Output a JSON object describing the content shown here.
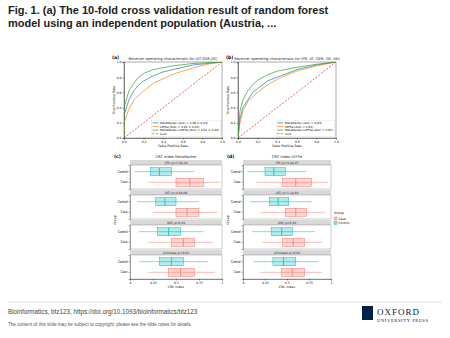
{
  "slide": {
    "title_lines": [
      "Fig. 1. (a) The 10-fold cross validation result of random forest",
      "model using an independent population (Austria, ..."
    ],
    "footer": [
      "Bioinformatics, btz123, https://doi.org/10.1093/bioinformatics/btz123",
      "The content of this slide may be subject to copyright: please see the slide notes for details."
    ],
    "publisher": [
      "OXFORD",
      "UNIVERSITY PRESS"
    ]
  },
  "chart_data": [
    {
      "type": "line",
      "label": "(a)",
      "title": "Receiver operating characteristic for (AT,GER,DE)",
      "xlabel": "False Positive Rate",
      "ylabel": "True Positive Rate",
      "xlim": [
        0,
        1
      ],
      "ylim": [
        0,
        1
      ],
      "xticks": [
        {
          "value": 0,
          "label": "0.0"
        },
        {
          "value": 0.2,
          "label": "0.2"
        },
        {
          "value": 0.4,
          "label": "0.4"
        },
        {
          "value": 0.6,
          "label": "0.6"
        },
        {
          "value": 0.8,
          "label": "0.8"
        },
        {
          "value": 1,
          "label": "1.0"
        }
      ],
      "yticks": [
        {
          "value": 0,
          "label": "0.0"
        },
        {
          "value": 0.2,
          "label": "0.2"
        },
        {
          "value": 0.4,
          "label": "0.4"
        },
        {
          "value": 0.6,
          "label": "0.6"
        },
        {
          "value": 0.8,
          "label": "0.8"
        },
        {
          "value": 1,
          "label": "1.0"
        }
      ],
      "grid": false,
      "legend": "lower right",
      "series": [
        {
          "name": "MetaMarker (AUC = 0.86 ± 0.03)",
          "color": "#1f77b4",
          "line_style": "solid",
          "x": [
            0,
            0,
            0.05,
            0.1,
            0.15,
            0.2,
            0.3,
            0.4,
            0.5,
            0.7,
            1
          ],
          "values": [
            0,
            0.3,
            0.5,
            0.62,
            0.7,
            0.75,
            0.82,
            0.87,
            0.9,
            0.96,
            1
          ]
        },
        {
          "name": "LEFSe (AUC = 0.81 ± 0.05)",
          "color": "#ff7f0e",
          "line_style": "solid",
          "x": [
            0,
            0,
            0.05,
            0.1,
            0.2,
            0.3,
            0.4,
            0.5,
            0.7,
            0.85,
            1
          ],
          "values": [
            0,
            0.2,
            0.38,
            0.5,
            0.62,
            0.72,
            0.78,
            0.84,
            0.92,
            0.97,
            1
          ]
        },
        {
          "name": "MetaMarker+LEFSe (AUC = 0.91 ± 0.04)",
          "color": "#2ca02c",
          "line_style": "solid",
          "x": [
            0,
            0,
            0.05,
            0.1,
            0.15,
            0.2,
            0.3,
            0.5,
            0.7,
            1
          ],
          "values": [
            0,
            0.4,
            0.62,
            0.72,
            0.8,
            0.85,
            0.9,
            0.95,
            0.98,
            1
          ]
        },
        {
          "name": "Luck",
          "color": "#d62728",
          "line_style": "dashed",
          "x": [
            0,
            1
          ],
          "values": [
            0,
            1
          ]
        }
      ]
    },
    {
      "type": "line",
      "label": "(b)",
      "title": "Receiver operating characteristic for (FR, AT, GER, DE, HK)",
      "xlabel": "False Positive Rate",
      "ylabel": "True Positive Rate",
      "xlim": [
        0,
        1
      ],
      "ylim": [
        0,
        1
      ],
      "xticks": [
        {
          "value": 0,
          "label": "0.0"
        },
        {
          "value": 0.2,
          "label": "0.2"
        },
        {
          "value": 0.4,
          "label": "0.4"
        },
        {
          "value": 0.6,
          "label": "0.6"
        },
        {
          "value": 0.8,
          "label": "0.8"
        },
        {
          "value": 1,
          "label": "1.0"
        }
      ],
      "yticks": [
        {
          "value": 0,
          "label": "0.0"
        },
        {
          "value": 0.2,
          "label": "0.2"
        },
        {
          "value": 0.4,
          "label": "0.4"
        },
        {
          "value": 0.6,
          "label": "0.6"
        },
        {
          "value": 0.8,
          "label": "0.8"
        },
        {
          "value": 1,
          "label": "1.0"
        }
      ],
      "grid": false,
      "legend": "lower right",
      "series": [
        {
          "name": "MetaMarker (AUC = 0.83)",
          "color": "#1f77b4",
          "line_style": "solid",
          "x": [
            0,
            0.02,
            0.05,
            0.1,
            0.15,
            0.2,
            0.3,
            0.4,
            0.5,
            0.6,
            0.8,
            1
          ],
          "values": [
            0,
            0.25,
            0.4,
            0.5,
            0.6,
            0.65,
            0.75,
            0.8,
            0.85,
            0.9,
            0.96,
            1
          ]
        },
        {
          "name": "LEFSe (AUC = 0.81)",
          "color": "#ff7f0e",
          "line_style": "solid",
          "x": [
            0,
            0.02,
            0.05,
            0.1,
            0.2,
            0.3,
            0.4,
            0.5,
            0.6,
            0.8,
            1
          ],
          "values": [
            0,
            0.2,
            0.35,
            0.48,
            0.6,
            0.7,
            0.77,
            0.83,
            0.88,
            0.95,
            1
          ]
        },
        {
          "name": "MetaMarker+LEFSe (AUC = 0.87)",
          "color": "#2ca02c",
          "line_style": "solid",
          "x": [
            0,
            0.02,
            0.05,
            0.1,
            0.15,
            0.2,
            0.3,
            0.4,
            0.6,
            0.8,
            1
          ],
          "values": [
            0,
            0.35,
            0.5,
            0.62,
            0.7,
            0.76,
            0.83,
            0.88,
            0.93,
            0.97,
            1
          ]
        },
        {
          "name": "Luck",
          "color": "#d62728",
          "line_style": "dashed",
          "x": [
            0,
            1
          ],
          "values": [
            0,
            1
          ]
        }
      ]
    },
    {
      "type": "box",
      "label": "(c)",
      "title": "CRC Index MetaMarker",
      "xlabel": "CRC Index",
      "ylabel": "Group",
      "xlim": [
        0,
        1
      ],
      "xticks": [
        0,
        0.25,
        0.5,
        0.75,
        1
      ],
      "grid": true,
      "categories": [
        "Control",
        "Case"
      ],
      "colors": [
        "#00bfc4",
        "#f8766d"
      ],
      "facets": [
        {
          "title": "(FR) p=1.5e-10",
          "boxes": [
            [
              0.05,
              0.22,
              0.32,
              0.45,
              0.7
            ],
            [
              0.2,
              0.5,
              0.65,
              0.8,
              0.98
            ]
          ]
        },
        {
          "title": "(AT) p=4.6e-06",
          "boxes": [
            [
              0.08,
              0.28,
              0.38,
              0.5,
              0.75
            ],
            [
              0.25,
              0.5,
              0.62,
              0.75,
              0.95
            ]
          ]
        },
        {
          "title": "(DE) p=0.01",
          "boxes": [
            [
              0.1,
              0.3,
              0.42,
              0.55,
              0.8
            ],
            [
              0.2,
              0.45,
              0.58,
              0.7,
              0.9
            ]
          ]
        },
        {
          "title": "(Chinese) p=0.03",
          "boxes": [
            [
              0.1,
              0.32,
              0.45,
              0.58,
              0.85
            ],
            [
              0.2,
              0.42,
              0.55,
              0.7,
              0.92
            ]
          ]
        }
      ]
    },
    {
      "type": "box",
      "label": "(d)",
      "title": "CRC Index LEFSe",
      "xlabel": "CRC Index",
      "ylabel": "Group",
      "xlim": [
        0,
        1
      ],
      "xticks": [
        0,
        0.25,
        0.5,
        0.75,
        1
      ],
      "grid": true,
      "legend": "right",
      "legend_title": "Group",
      "categories": [
        "Control",
        "Case"
      ],
      "colors": [
        "#00bfc4",
        "#f8766d"
      ],
      "series": [
        {
          "name": "Case",
          "color": "#f8766d"
        },
        {
          "name": "Control",
          "color": "#00bfc4"
        }
      ],
      "facets": [
        {
          "title": "(FR) p=3.2e-07",
          "boxes": [
            [
              0.05,
              0.25,
              0.35,
              0.48,
              0.72
            ],
            [
              0.15,
              0.45,
              0.6,
              0.78,
              0.97
            ]
          ]
        },
        {
          "title": "(AT) p=1.1e-04",
          "boxes": [
            [
              0.08,
              0.3,
              0.4,
              0.52,
              0.78
            ],
            [
              0.2,
              0.48,
              0.6,
              0.72,
              0.93
            ]
          ]
        },
        {
          "title": "(DE) p=0.02",
          "boxes": [
            [
              0.1,
              0.32,
              0.44,
              0.56,
              0.82
            ],
            [
              0.22,
              0.45,
              0.57,
              0.7,
              0.9
            ]
          ]
        },
        {
          "title": "(Chinese) p=0.04",
          "boxes": [
            [
              0.12,
              0.34,
              0.46,
              0.6,
              0.86
            ],
            [
              0.2,
              0.44,
              0.56,
              0.7,
              0.9
            ]
          ]
        }
      ]
    }
  ]
}
